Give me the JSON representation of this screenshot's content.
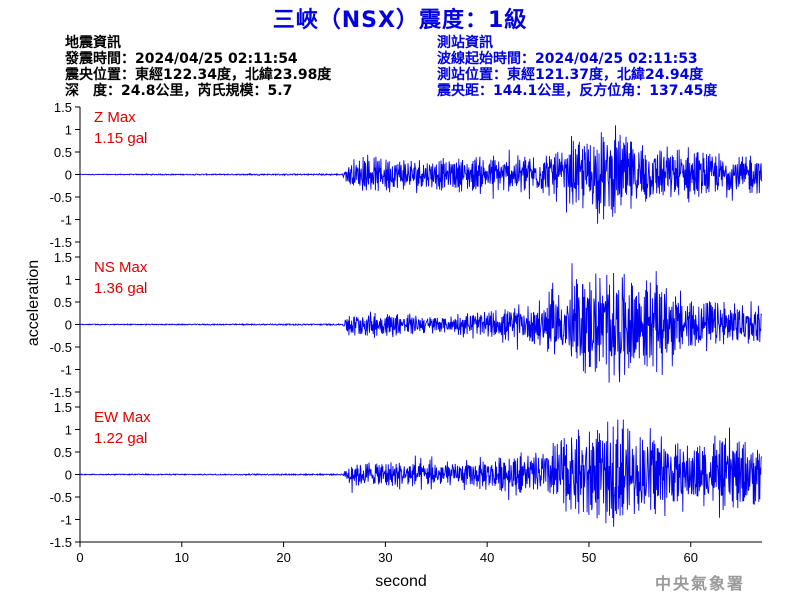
{
  "header": {
    "title": "三峽（NSX）震度：1級"
  },
  "event_info": {
    "heading": "地震資訊",
    "origin_time": "發震時間：2024/04/25 02:11:54",
    "epicenter": "震央位置：東經122.34度，北緯23.98度",
    "depth_magnitude": "深　度：24.8公里，芮氏規模：5.7"
  },
  "station_info": {
    "heading": "測站資訊",
    "wave_start": "波線起始時間：2024/04/25 02:11:53",
    "location": "測站位置：東經121.37度，北緯24.94度",
    "distance": "震央距：144.1公里，反方位角：137.45度"
  },
  "footer": {
    "agency": "中央氣象署"
  },
  "colors": {
    "trace": "#0000ee",
    "label": "#e00000",
    "axis": "#000000"
  },
  "chart_data": {
    "type": "line",
    "xlabel": "second",
    "ylabel": "acceleration",
    "xlim": [
      0,
      67
    ],
    "ylim": [
      -1.5,
      1.5
    ],
    "x_ticks": [
      "0",
      "10",
      "20",
      "30",
      "40",
      "50",
      "60"
    ],
    "y_ticks": [
      "1.5",
      "1",
      "0.5",
      "0",
      "-0.5",
      "-1",
      "-1.5"
    ],
    "grid": false,
    "onset_seconds": 25.9,
    "panels": [
      {
        "component": "Z",
        "label": "Z Max",
        "max_value": "1.15 gal",
        "peak": 1.15,
        "envelope": [
          [
            0,
            0.01
          ],
          [
            25.8,
            0.02
          ],
          [
            26.5,
            0.35
          ],
          [
            30,
            0.45
          ],
          [
            36,
            0.35
          ],
          [
            44,
            0.5
          ],
          [
            48,
            0.65
          ],
          [
            52,
            1.15
          ],
          [
            55,
            0.8
          ],
          [
            60,
            0.6
          ],
          [
            67,
            0.45
          ]
        ]
      },
      {
        "component": "NS",
        "label": "NS Max",
        "max_value": "1.36 gal",
        "peak": 1.36,
        "envelope": [
          [
            0,
            0.01
          ],
          [
            25.8,
            0.02
          ],
          [
            26.5,
            0.35
          ],
          [
            30,
            0.3
          ],
          [
            36,
            0.2
          ],
          [
            44,
            0.45
          ],
          [
            49,
            1.1
          ],
          [
            53,
            1.36
          ],
          [
            56,
            1.0
          ],
          [
            60,
            0.7
          ],
          [
            67,
            0.5
          ]
        ]
      },
      {
        "component": "EW",
        "label": "EW Max",
        "max_value": "1.22 gal",
        "peak": 1.22,
        "envelope": [
          [
            0,
            0.01
          ],
          [
            25.8,
            0.02
          ],
          [
            26.5,
            0.3
          ],
          [
            30,
            0.35
          ],
          [
            37,
            0.3
          ],
          [
            45,
            0.55
          ],
          [
            49,
            1.1
          ],
          [
            53,
            1.22
          ],
          [
            57,
            0.9
          ],
          [
            60,
            0.75
          ],
          [
            67,
            0.8
          ]
        ]
      }
    ]
  }
}
